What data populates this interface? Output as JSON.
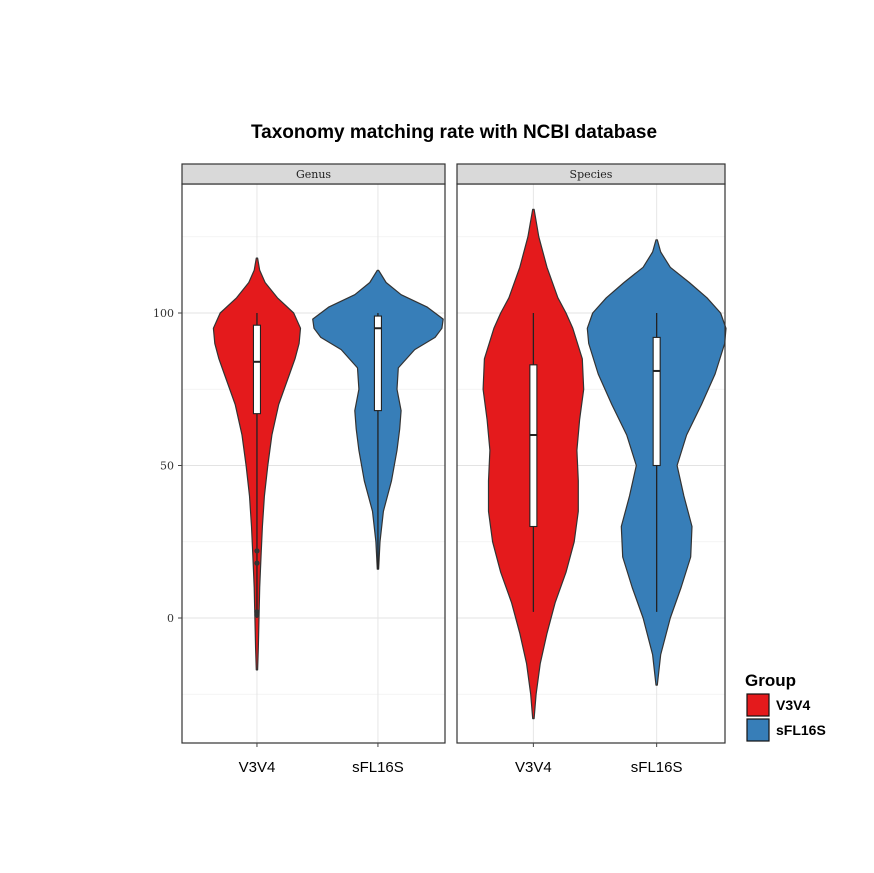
{
  "chart_data": {
    "type": "violin",
    "title": "Taxonomy matching rate with NCBI database",
    "facets": [
      "Genus",
      "Species"
    ],
    "categories": [
      "V3V4",
      "sFL16S"
    ],
    "y_ticks": [
      0,
      50,
      100
    ],
    "ylim": [
      -42,
      142
    ],
    "grid": true,
    "legend": {
      "title": "Group",
      "position": "right",
      "items": [
        {
          "label": "V3V4",
          "color": "#e41a1c"
        },
        {
          "label": "sFL16S",
          "color": "#377eb8"
        }
      ]
    },
    "series": [
      {
        "facet": "Genus",
        "group": "V3V4",
        "color": "#e41a1c",
        "range": [
          -17,
          118
        ],
        "box": {
          "q1": 67,
          "median": 84,
          "q3": 96,
          "whisker_low": 0,
          "whisker_high": 100
        },
        "outliers": [
          22,
          18,
          2,
          1
        ],
        "density_y": [
          -17,
          -10,
          0,
          10,
          20,
          30,
          40,
          50,
          60,
          70,
          80,
          85,
          90,
          95,
          100,
          105,
          110,
          114,
          118
        ],
        "density_w": [
          0.005,
          0.01,
          0.015,
          0.02,
          0.03,
          0.04,
          0.055,
          0.08,
          0.11,
          0.16,
          0.24,
          0.28,
          0.31,
          0.32,
          0.27,
          0.15,
          0.06,
          0.02,
          0.005
        ]
      },
      {
        "facet": "Genus",
        "group": "sFL16S",
        "color": "#377eb8",
        "range": [
          16,
          114
        ],
        "box": {
          "q1": 68,
          "median": 95,
          "q3": 99,
          "whisker_low": 16,
          "whisker_high": 100
        },
        "outliers": [],
        "density_y": [
          16,
          25,
          35,
          45,
          55,
          62,
          68,
          75,
          82,
          88,
          92,
          95,
          98,
          102,
          106,
          110,
          114
        ],
        "density_w": [
          0.005,
          0.015,
          0.04,
          0.1,
          0.14,
          0.16,
          0.17,
          0.14,
          0.15,
          0.27,
          0.42,
          0.47,
          0.48,
          0.36,
          0.17,
          0.06,
          0.005
        ]
      },
      {
        "facet": "Species",
        "group": "V3V4",
        "color": "#e41a1c",
        "range": [
          -33,
          134
        ],
        "box": {
          "q1": 30,
          "median": 60,
          "q3": 83,
          "whisker_low": 2,
          "whisker_high": 100
        },
        "outliers": [],
        "density_y": [
          -33,
          -25,
          -15,
          -5,
          5,
          15,
          25,
          35,
          45,
          55,
          65,
          75,
          85,
          95,
          100,
          105,
          115,
          125,
          134
        ],
        "density_w": [
          0.005,
          0.02,
          0.05,
          0.1,
          0.16,
          0.24,
          0.3,
          0.33,
          0.33,
          0.32,
          0.34,
          0.37,
          0.36,
          0.29,
          0.24,
          0.18,
          0.1,
          0.04,
          0.005
        ]
      },
      {
        "facet": "Species",
        "group": "sFL16S",
        "color": "#377eb8",
        "range": [
          -22,
          124
        ],
        "box": {
          "q1": 50,
          "median": 81,
          "q3": 92,
          "whisker_low": 2,
          "whisker_high": 100
        },
        "outliers": [],
        "density_y": [
          -22,
          -12,
          0,
          10,
          20,
          30,
          40,
          50,
          60,
          70,
          80,
          90,
          95,
          100,
          105,
          110,
          115,
          120,
          124
        ],
        "density_w": [
          0.005,
          0.03,
          0.1,
          0.18,
          0.25,
          0.26,
          0.2,
          0.15,
          0.22,
          0.33,
          0.43,
          0.5,
          0.51,
          0.47,
          0.37,
          0.24,
          0.1,
          0.03,
          0.005
        ]
      }
    ]
  }
}
